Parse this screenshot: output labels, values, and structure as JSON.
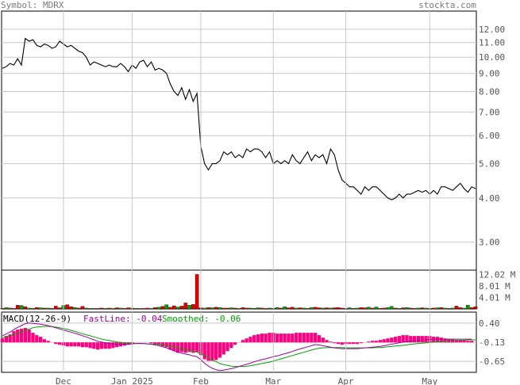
{
  "header": {
    "symbol_label": "Symbol: MDRX",
    "site": "stockta.com"
  },
  "colors": {
    "price": "#000000",
    "grid": "#c8c8c8",
    "vol_up": "#00a000",
    "vol_down": "#e00000",
    "macd_hist": "#ff0080",
    "fast": "#a000a0",
    "smooth": "#00a000",
    "axis_text": "#555555"
  },
  "chart_data": [
    {
      "type": "line",
      "panel": "price",
      "scale": "log",
      "ylim": [
        2.5,
        13.5
      ],
      "y_ticks": [
        3.0,
        4.0,
        5.0,
        6.0,
        7.0,
        8.0,
        9.0,
        10.0,
        11.0,
        12.0
      ],
      "y_tick_labels": [
        "3.00",
        "4.00",
        "5.00",
        "6.00",
        "7.00",
        "8.00",
        "9.00",
        "10.00",
        "11.00",
        "12.00"
      ],
      "x_tick_labels": [
        "Dec",
        "Jan 2025",
        "Feb",
        "Mar",
        "Apr",
        "May"
      ],
      "x_tick_index": [
        16,
        34,
        52,
        71,
        90,
        112
      ],
      "grid": true,
      "values": [
        9.3,
        9.4,
        9.6,
        9.5,
        9.9,
        9.5,
        11.3,
        11.1,
        11.2,
        10.8,
        10.7,
        10.9,
        10.8,
        10.6,
        10.7,
        11.1,
        10.9,
        10.7,
        10.8,
        10.6,
        10.4,
        10.3,
        10.0,
        9.5,
        9.7,
        9.6,
        9.5,
        9.4,
        9.5,
        9.4,
        9.4,
        9.6,
        9.4,
        9.1,
        9.5,
        9.3,
        9.7,
        9.8,
        9.4,
        9.7,
        9.2,
        9.3,
        9.2,
        9.0,
        8.4,
        8.0,
        7.8,
        8.2,
        7.6,
        8.1,
        7.5,
        7.9,
        5.6,
        5.0,
        4.8,
        5.0,
        5.0,
        5.1,
        5.4,
        5.3,
        5.4,
        5.2,
        5.3,
        5.2,
        5.5,
        5.4,
        5.5,
        5.5,
        5.4,
        5.2,
        5.4,
        5.0,
        5.1,
        5.0,
        5.1,
        5.0,
        5.3,
        5.1,
        5.0,
        5.2,
        5.4,
        5.1,
        5.3,
        5.2,
        5.3,
        5.0,
        5.5,
        5.3,
        4.8,
        4.5,
        4.4,
        4.3,
        4.3,
        4.2,
        4.1,
        4.3,
        4.2,
        4.3,
        4.3,
        4.2,
        4.1,
        4.0,
        3.95,
        4.0,
        4.1,
        4.0,
        4.1,
        4.1,
        4.15,
        4.2,
        4.15,
        4.2,
        4.1,
        4.2,
        4.1,
        4.3,
        4.3,
        4.25,
        4.2,
        4.3,
        4.4,
        4.25,
        4.15,
        4.3,
        4.25
      ]
    },
    {
      "type": "bar",
      "panel": "volume",
      "ylim": [
        0,
        13.5
      ],
      "y_tick_labels": [
        "12.02 M",
        "8.01 M",
        "4.01 M"
      ],
      "y_ticks": [
        12.02,
        8.01,
        4.01
      ],
      "values": [
        0.2,
        0.5,
        0.3,
        0.2,
        1.3,
        1.2,
        0.8,
        0.3,
        0.2,
        0.5,
        0.4,
        0.3,
        0.3,
        0.2,
        1.0,
        0.4,
        1.2,
        1.5,
        0.8,
        0.5,
        0.3,
        0.9,
        0.3,
        0.2,
        0.2,
        0.2,
        0.3,
        0.2,
        0.3,
        0.2,
        0.4,
        0.3,
        0.2,
        0.4,
        0.3,
        0.2,
        0.2,
        0.2,
        0.3,
        0.2,
        0.5,
        0.6,
        0.9,
        1.5,
        0.6,
        1.1,
        0.7,
        1.0,
        2.1,
        1.3,
        1.6,
        12.0,
        0.4,
        0.3,
        0.5,
        0.4,
        0.6,
        0.5,
        0.3,
        0.3,
        0.4,
        0.3,
        0.2,
        0.5,
        0.3,
        0.3,
        0.2,
        0.4,
        0.3,
        0.2,
        0.3,
        0.2,
        0.5,
        0.3,
        0.8,
        0.4,
        0.6,
        0.3,
        0.4,
        0.3,
        0.2,
        0.5,
        0.6,
        0.4,
        0.3,
        0.4,
        0.3,
        0.4,
        0.5,
        0.3,
        0.2,
        0.4,
        0.2,
        0.3,
        0.5,
        0.4,
        0.6,
        0.3,
        0.7,
        0.2,
        0.3,
        0.5,
        0.9,
        0.3,
        0.2,
        0.4,
        0.5,
        0.3,
        0.2,
        0.3,
        0.4,
        0.3,
        0.2,
        0.3,
        0.4,
        0.5,
        0.3,
        0.2,
        0.3,
        1.0,
        0.5,
        0.3,
        1.3,
        0.5,
        0.8
      ],
      "up": [
        0,
        1,
        0,
        0,
        0,
        1,
        0,
        1,
        0,
        0,
        1,
        0,
        1,
        0,
        0,
        0,
        1,
        0,
        0,
        1,
        0,
        0,
        1,
        0,
        1,
        0,
        0,
        1,
        0,
        1,
        0,
        1,
        0,
        0,
        1,
        0,
        1,
        0,
        0,
        1,
        0,
        1,
        0,
        1,
        0,
        0,
        1,
        0,
        0,
        1,
        0,
        0,
        0,
        1,
        0,
        1,
        0,
        1,
        0,
        0,
        1,
        0,
        1,
        0,
        0,
        1,
        0,
        1,
        0,
        0,
        1,
        0,
        1,
        0,
        1,
        0,
        0,
        1,
        0,
        1,
        0,
        1,
        0,
        0,
        1,
        0,
        1,
        0,
        0,
        0,
        0,
        1,
        0,
        1,
        0,
        0,
        1,
        0,
        1,
        0,
        0,
        1,
        1,
        0,
        1,
        0,
        1,
        0,
        0,
        1,
        0,
        1,
        0,
        0,
        1,
        0,
        1,
        0,
        1,
        0,
        0,
        1,
        1,
        0
      ]
    },
    {
      "type": "line",
      "panel": "macd",
      "title": "MACD(12-26-9)",
      "legend": [
        {
          "name": "FastLine:",
          "value": "-0.04"
        },
        {
          "name": "Smoothed:",
          "value": "-0.06"
        }
      ],
      "ylim": [
        -0.95,
        0.7
      ],
      "y_ticks": [
        0.4,
        -0.13,
        -0.65
      ],
      "y_tick_labels": [
        "0.40",
        "-0.13",
        "-0.65"
      ],
      "x_tick_labels": [
        "Dec",
        "Jan 2025",
        "Feb",
        "Mar",
        "Apr",
        "May"
      ],
      "x_tick_index": [
        16,
        34,
        52,
        71,
        90,
        112
      ],
      "series": [
        {
          "name": "FastLine",
          "values": [
            0.05,
            0.1,
            0.15,
            0.22,
            0.28,
            0.33,
            0.38,
            0.4,
            0.39,
            0.38,
            0.37,
            0.35,
            0.33,
            0.3,
            0.27,
            0.24,
            0.21,
            0.18,
            0.15,
            0.12,
            0.09,
            0.05,
            0.02,
            -0.02,
            -0.06,
            -0.1,
            -0.12,
            -0.14,
            -0.16,
            -0.17,
            -0.18,
            -0.18,
            -0.18,
            -0.18,
            -0.17,
            -0.16,
            -0.16,
            -0.16,
            -0.17,
            -0.18,
            -0.2,
            -0.22,
            -0.25,
            -0.28,
            -0.32,
            -0.36,
            -0.4,
            -0.42,
            -0.45,
            -0.47,
            -0.5,
            -0.52,
            -0.6,
            -0.7,
            -0.78,
            -0.84,
            -0.88,
            -0.9,
            -0.89,
            -0.87,
            -0.85,
            -0.82,
            -0.79,
            -0.76,
            -0.73,
            -0.7,
            -0.66,
            -0.63,
            -0.6,
            -0.58,
            -0.55,
            -0.52,
            -0.5,
            -0.47,
            -0.44,
            -0.41,
            -0.38,
            -0.34,
            -0.31,
            -0.28,
            -0.25,
            -0.22,
            -0.19,
            -0.2,
            -0.22,
            -0.24,
            -0.26,
            -0.28,
            -0.29,
            -0.3,
            -0.3,
            -0.3,
            -0.3,
            -0.3,
            -0.29,
            -0.28,
            -0.27,
            -0.26,
            -0.25,
            -0.24,
            -0.22,
            -0.2,
            -0.18,
            -0.16,
            -0.14,
            -0.12,
            -0.11,
            -0.1,
            -0.09,
            -0.08,
            -0.07,
            -0.06,
            -0.05,
            -0.05,
            -0.04,
            -0.04,
            -0.04,
            -0.04,
            -0.04,
            -0.04,
            -0.04,
            -0.04,
            -0.04,
            -0.04
          ]
        },
        {
          "name": "Smoothed",
          "values": [
            0.0,
            0.02,
            0.05,
            0.08,
            0.12,
            0.16,
            0.2,
            0.24,
            0.27,
            0.29,
            0.3,
            0.31,
            0.31,
            0.3,
            0.29,
            0.27,
            0.25,
            0.23,
            0.2,
            0.17,
            0.14,
            0.11,
            0.08,
            0.05,
            0.02,
            -0.01,
            -0.04,
            -0.06,
            -0.08,
            -0.1,
            -0.12,
            -0.13,
            -0.14,
            -0.15,
            -0.16,
            -0.16,
            -0.16,
            -0.16,
            -0.17,
            -0.17,
            -0.18,
            -0.19,
            -0.2,
            -0.22,
            -0.23,
            -0.25,
            -0.27,
            -0.3,
            -0.32,
            -0.35,
            -0.37,
            -0.4,
            -0.44,
            -0.49,
            -0.55,
            -0.61,
            -0.66,
            -0.71,
            -0.74,
            -0.76,
            -0.78,
            -0.79,
            -0.79,
            -0.79,
            -0.78,
            -0.77,
            -0.75,
            -0.73,
            -0.71,
            -0.69,
            -0.67,
            -0.64,
            -0.61,
            -0.58,
            -0.55,
            -0.52,
            -0.49,
            -0.46,
            -0.43,
            -0.4,
            -0.37,
            -0.34,
            -0.31,
            -0.29,
            -0.28,
            -0.27,
            -0.27,
            -0.27,
            -0.27,
            -0.27,
            -0.28,
            -0.28,
            -0.28,
            -0.28,
            -0.28,
            -0.28,
            -0.28,
            -0.28,
            -0.27,
            -0.27,
            -0.26,
            -0.25,
            -0.24,
            -0.23,
            -0.22,
            -0.21,
            -0.2,
            -0.18,
            -0.17,
            -0.16,
            -0.15,
            -0.14,
            -0.13,
            -0.12,
            -0.11,
            -0.1,
            -0.09,
            -0.08,
            -0.08,
            -0.07,
            -0.07,
            -0.07,
            -0.06,
            -0.06,
            -0.06
          ]
        }
      ]
    }
  ]
}
